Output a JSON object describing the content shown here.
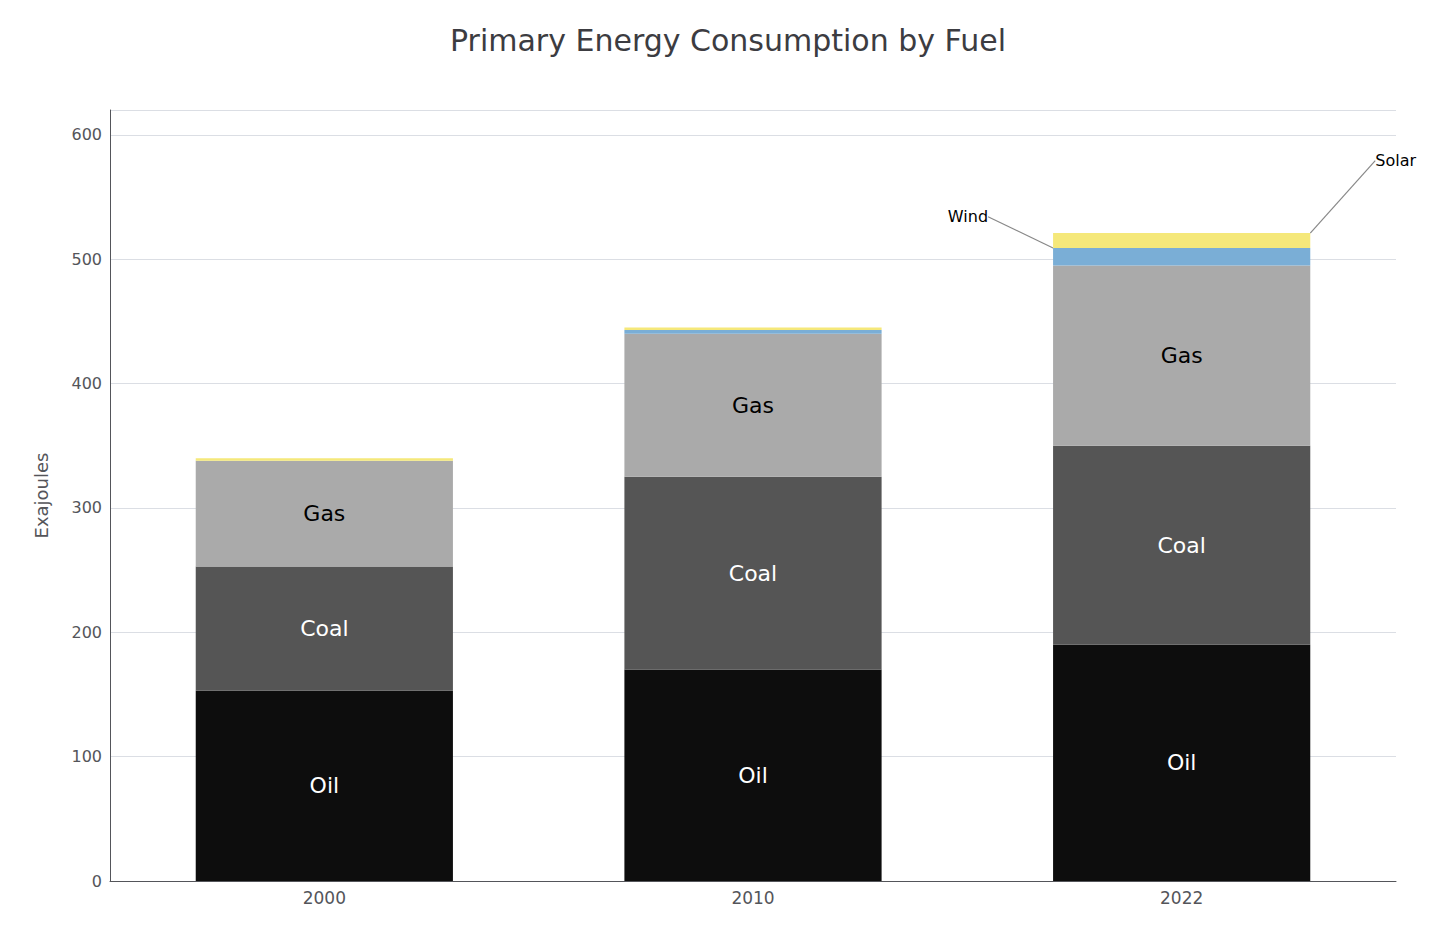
{
  "chart_data": {
    "type": "bar",
    "stacked": true,
    "title": "Primary Energy Consumption by Fuel",
    "ylabel": "Exajoules",
    "categories": [
      "2000",
      "2010",
      "2022"
    ],
    "series": [
      {
        "name": "Oil",
        "color": "#0d0d0d",
        "values": [
          153,
          170,
          190
        ]
      },
      {
        "name": "Coal",
        "color": "#555555",
        "values": [
          100,
          155,
          160
        ]
      },
      {
        "name": "Gas",
        "color": "#aaaaaa",
        "values": [
          85,
          115,
          145
        ]
      },
      {
        "name": "Wind",
        "color": "#7aaed6",
        "values": [
          0,
          3,
          14
        ]
      },
      {
        "name": "Solar",
        "color": "#f5e87a",
        "values": [
          2,
          2,
          12
        ]
      }
    ],
    "ylim": [
      0,
      620
    ],
    "yticks": [
      0,
      100,
      200,
      300,
      400,
      500,
      600
    ],
    "grid": true,
    "annotations": [
      {
        "text": "Oil",
        "series": "Oil",
        "category": "2000"
      },
      {
        "text": "Coal",
        "series": "Coal",
        "category": "2000"
      },
      {
        "text": "Gas",
        "series": "Gas",
        "category": "2000"
      },
      {
        "text": "Oil",
        "series": "Oil",
        "category": "2010"
      },
      {
        "text": "Coal",
        "series": "Coal",
        "category": "2010"
      },
      {
        "text": "Gas",
        "series": "Gas",
        "category": "2010"
      },
      {
        "text": "Oil",
        "series": "Oil",
        "category": "2022"
      },
      {
        "text": "Coal",
        "series": "Coal",
        "category": "2022"
      },
      {
        "text": "Gas",
        "series": "Gas",
        "category": "2022"
      },
      {
        "text": "Wind",
        "series": "Wind",
        "category": "2022"
      },
      {
        "text": "Solar",
        "series": "Solar",
        "category": "2022"
      }
    ]
  }
}
